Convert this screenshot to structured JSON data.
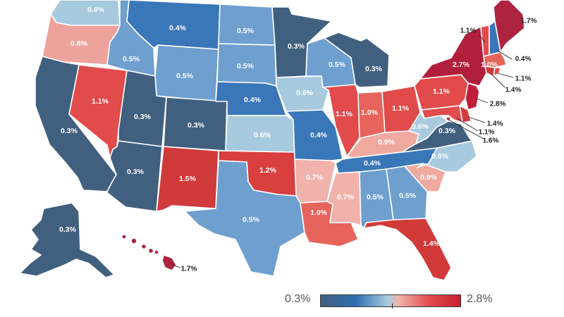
{
  "colors": {
    "low": "#2e6db0",
    "high": "#c8202e",
    "c_03": "#41607f",
    "c_04": "#3a77b8",
    "c_05": "#6e9fcf",
    "c_06": "#a8cadf",
    "c_07": "#f0b2ab",
    "c_08": "#eda39b",
    "c_09": "#f0a99f",
    "c_10": "#e6645c",
    "c_11": "#e14b4b",
    "c_12": "#d93f3f",
    "c_14": "#d23a3a",
    "c_15": "#d13a3a",
    "c_16": "#c73a3e",
    "c_17": "#ad2340",
    "c_27": "#b21f3c",
    "c_28": "#c01d3a"
  },
  "legend": {
    "min": "0.3%",
    "max": "2.8%"
  },
  "states": [
    {
      "id": "WA",
      "value": "0.6%"
    },
    {
      "id": "OR",
      "value": "0.8%"
    },
    {
      "id": "CA",
      "value": "0.3%"
    },
    {
      "id": "NV",
      "value": "1.1%"
    },
    {
      "id": "ID",
      "value": "0.5%"
    },
    {
      "id": "MT",
      "value": "0.4%"
    },
    {
      "id": "WY",
      "value": "0.5%"
    },
    {
      "id": "UT",
      "value": "0.3%"
    },
    {
      "id": "AZ",
      "value": "0.3%"
    },
    {
      "id": "CO",
      "value": "0.3%"
    },
    {
      "id": "NM",
      "value": "1.5%"
    },
    {
      "id": "ND",
      "value": "0.5%"
    },
    {
      "id": "SD",
      "value": "0.5%"
    },
    {
      "id": "NE",
      "value": "0.4%"
    },
    {
      "id": "KS",
      "value": "0.6%"
    },
    {
      "id": "OK",
      "value": "1.2%"
    },
    {
      "id": "TX",
      "value": "0.5%"
    },
    {
      "id": "MN",
      "value": "0.3%"
    },
    {
      "id": "IA",
      "value": "0.6%"
    },
    {
      "id": "MO",
      "value": "0.4%"
    },
    {
      "id": "AR",
      "value": "0.7%"
    },
    {
      "id": "LA",
      "value": "1.0%"
    },
    {
      "id": "WI",
      "value": "0.5%"
    },
    {
      "id": "IL",
      "value": "1.1%"
    },
    {
      "id": "MI",
      "value": "0.3%"
    },
    {
      "id": "IN",
      "value": "1.0%"
    },
    {
      "id": "OH",
      "value": "1.1%"
    },
    {
      "id": "KY",
      "value": "0.9%"
    },
    {
      "id": "TN",
      "value": "0.4%"
    },
    {
      "id": "MS",
      "value": "0.7%"
    },
    {
      "id": "AL",
      "value": "0.5%"
    },
    {
      "id": "GA",
      "value": "0.5%"
    },
    {
      "id": "FL",
      "value": "1.4%"
    },
    {
      "id": "SC",
      "value": "0.9%"
    },
    {
      "id": "NC",
      "value": "0.6%"
    },
    {
      "id": "VA",
      "value": "0.3%"
    },
    {
      "id": "WV",
      "value": "0.6%"
    },
    {
      "id": "PA",
      "value": "1.1%"
    },
    {
      "id": "NY",
      "value": "2.7%"
    },
    {
      "id": "VT",
      "value": "1.1%"
    },
    {
      "id": "NH",
      "value": "0.4%"
    },
    {
      "id": "ME",
      "value": "1.7%"
    },
    {
      "id": "MA",
      "value": "1.0%"
    },
    {
      "id": "RI",
      "value": "1.1%"
    },
    {
      "id": "CT",
      "value": "1.4%"
    },
    {
      "id": "NJ",
      "value": "2.8%"
    },
    {
      "id": "DE",
      "value": "1.4%"
    },
    {
      "id": "MD",
      "value": "1.1%"
    },
    {
      "id": "DC",
      "value": "1.6%"
    },
    {
      "id": "AK",
      "value": "0.3%"
    },
    {
      "id": "HI",
      "value": "1.7%"
    }
  ]
}
